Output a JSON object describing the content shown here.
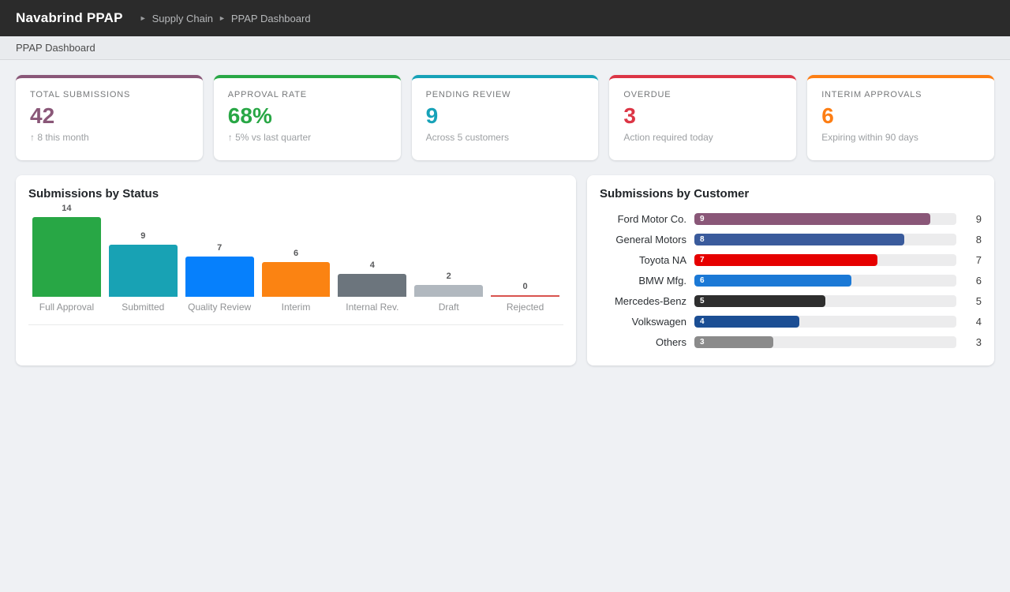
{
  "header": {
    "app_title": "Navabrind PPAP",
    "breadcrumb": {
      "separator": "►",
      "items": [
        "Supply Chain",
        "PPAP Dashboard"
      ]
    }
  },
  "subheader": {
    "title": "PPAP Dashboard"
  },
  "kpi_cards": [
    {
      "label": "TOTAL SUBMISSIONS",
      "value": "42",
      "subtitle": "↑ 8 this month",
      "accent_color": "#8a5778"
    },
    {
      "label": "APPROVAL RATE",
      "value": "68%",
      "subtitle": "↑ 5% vs last quarter",
      "accent_color": "#28a745"
    },
    {
      "label": "PENDING REVIEW",
      "value": "9",
      "subtitle": "Across 5 customers",
      "accent_color": "#17a2b8"
    },
    {
      "label": "OVERDUE",
      "value": "3",
      "subtitle": "Action required today",
      "accent_color": "#dc3545"
    },
    {
      "label": "INTERIM APPROVALS",
      "value": "6",
      "subtitle": "Expiring within 90 days",
      "accent_color": "#fd7e14"
    }
  ],
  "chart_data": [
    {
      "type": "bar",
      "orientation": "vertical",
      "title": "Submissions by Status",
      "categories": [
        "Full Approval",
        "Submitted",
        "Quality Review",
        "Interim",
        "Internal Rev.",
        "Draft",
        "Rejected"
      ],
      "values": [
        14,
        9,
        7,
        6,
        4,
        2,
        0
      ],
      "colors": [
        "#28a745",
        "#18a2b4",
        "#0680fc",
        "#fb8312",
        "#6c757d",
        "#b1b8bf",
        "#d9534f"
      ],
      "ylim": [
        0,
        14
      ],
      "grid": false,
      "legend": false
    },
    {
      "type": "bar",
      "orientation": "horizontal",
      "title": "Submissions by Customer",
      "categories": [
        "Ford Motor Co.",
        "General Motors",
        "Toyota NA",
        "BMW Mfg.",
        "Mercedes-Benz",
        "Volkswagen",
        "Others"
      ],
      "values": [
        9,
        8,
        7,
        6,
        5,
        4,
        3
      ],
      "colors": [
        "#8a5778",
        "#3a5b9c",
        "#e60000",
        "#1b79d6",
        "#2e2e2e",
        "#1b4e94",
        "#8b8b8b"
      ],
      "xlim": [
        0,
        10
      ],
      "grid": false,
      "legend": false
    }
  ]
}
